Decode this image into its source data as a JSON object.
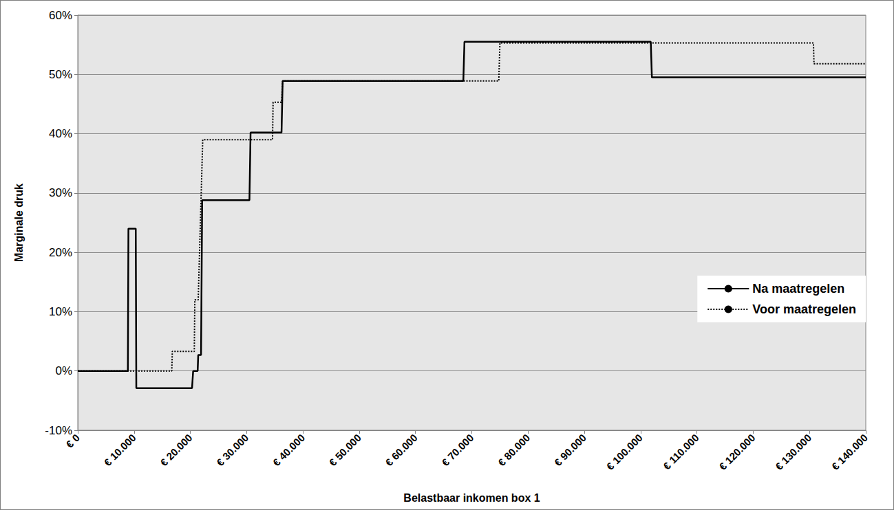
{
  "chart_data": {
    "type": "line",
    "x_label": "Belastbaar inkomen box 1",
    "y_label": "Marginale druk",
    "xlim": [
      0,
      140000
    ],
    "xticks": [
      {
        "value": 0,
        "label": "€ 0"
      },
      {
        "value": 10000,
        "label": "€ 10.000"
      },
      {
        "value": 20000,
        "label": "€ 20.000"
      },
      {
        "value": 30000,
        "label": "€ 30.000"
      },
      {
        "value": 40000,
        "label": "€ 40.000"
      },
      {
        "value": 50000,
        "label": "€ 50.000"
      },
      {
        "value": 60000,
        "label": "€ 60.000"
      },
      {
        "value": 70000,
        "label": "€ 70.000"
      },
      {
        "value": 80000,
        "label": "€ 80.000"
      },
      {
        "value": 90000,
        "label": "€ 90.000"
      },
      {
        "value": 100000,
        "label": "€ 100.000"
      },
      {
        "value": 110000,
        "label": "€ 110.000"
      },
      {
        "value": 120000,
        "label": "€ 120.000"
      },
      {
        "value": 130000,
        "label": "€ 130.000"
      },
      {
        "value": 140000,
        "label": "€ 140.000"
      }
    ],
    "ylim": [
      -10,
      60
    ],
    "yticks": [
      {
        "value": -10,
        "label": "-10%"
      },
      {
        "value": 0,
        "label": "0%"
      },
      {
        "value": 10,
        "label": "10%"
      },
      {
        "value": 20,
        "label": "20%"
      },
      {
        "value": 30,
        "label": "30%"
      },
      {
        "value": 40,
        "label": "40%"
      },
      {
        "value": 50,
        "label": "50%"
      },
      {
        "value": 60,
        "label": "60%"
      }
    ],
    "grid": true,
    "legend": "right",
    "series": [
      {
        "name": "Na maatregelen",
        "color": "#000000",
        "line_style": "solid",
        "x": [
          0,
          8900,
          9000,
          10300,
          10400,
          20300,
          20500,
          21300,
          21400,
          21900,
          22100,
          30500,
          30700,
          36200,
          36400,
          68500,
          68700,
          101800,
          102000,
          140000
        ],
        "values": [
          0,
          0,
          24,
          24,
          -2.9,
          -2.9,
          0,
          0,
          2.7,
          2.7,
          28.8,
          28.8,
          40.2,
          40.2,
          48.9,
          48.9,
          55.5,
          55.5,
          49.5,
          49.5
        ]
      },
      {
        "name": "Voor maatregelen",
        "color": "#000000",
        "line_style": "dotted",
        "x": [
          0,
          16700,
          16800,
          20700,
          20800,
          21400,
          22200,
          34600,
          34700,
          36200,
          36400,
          74800,
          75000,
          130700,
          130800,
          140000
        ],
        "values": [
          0,
          0,
          3.3,
          3.3,
          12,
          12,
          39,
          39,
          45.3,
          45.3,
          48.9,
          48.9,
          55.3,
          55.3,
          51.8,
          51.8
        ]
      }
    ]
  }
}
